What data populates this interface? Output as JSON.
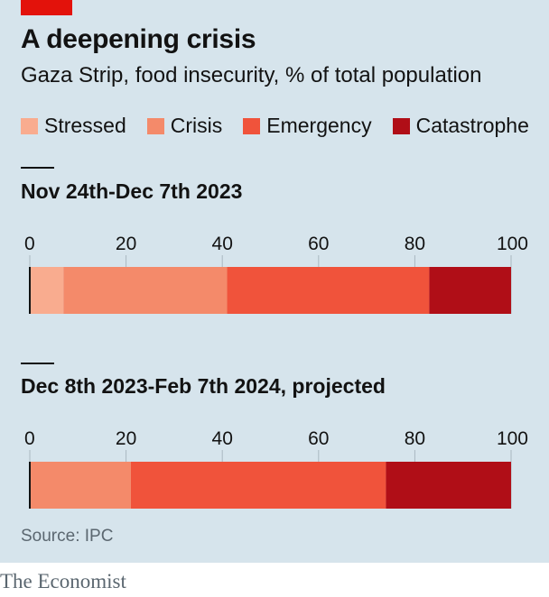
{
  "header": {
    "title": "A deepening crisis",
    "subtitle": "Gaza Strip, food insecurity, % of total population"
  },
  "legend": [
    {
      "label": "Stressed",
      "color": "#f9ac8f"
    },
    {
      "label": "Crisis",
      "color": "#f48a6a"
    },
    {
      "label": "Emergency",
      "color": "#f0533b"
    },
    {
      "label": "Catastrophe",
      "color": "#b00e17"
    }
  ],
  "footer": {
    "source": "Source: IPC",
    "brand": "The Economist"
  },
  "chart_data": [
    {
      "type": "bar",
      "orientation": "horizontal-stacked",
      "title": "Nov 24th-Dec 7th 2023",
      "xlim": [
        0,
        100
      ],
      "ticks": [
        "0",
        "20",
        "40",
        "60",
        "80",
        "100"
      ],
      "tick_values": [
        0,
        20,
        40,
        60,
        80,
        100
      ],
      "grid": true,
      "series": [
        {
          "name": "Stressed",
          "value": 7,
          "color": "#f9ac8f"
        },
        {
          "name": "Crisis",
          "value": 34,
          "color": "#f48a6a"
        },
        {
          "name": "Emergency",
          "value": 42,
          "color": "#f0533b"
        },
        {
          "name": "Catastrophe",
          "value": 17,
          "color": "#b00e17"
        }
      ]
    },
    {
      "type": "bar",
      "orientation": "horizontal-stacked",
      "title": "Dec 8th 2023-Feb 7th 2024, projected",
      "xlim": [
        0,
        100
      ],
      "ticks": [
        "0",
        "20",
        "40",
        "60",
        "80",
        "100"
      ],
      "tick_values": [
        0,
        20,
        40,
        60,
        80,
        100
      ],
      "grid": true,
      "series": [
        {
          "name": "Stressed",
          "value": 0,
          "color": "#f9ac8f"
        },
        {
          "name": "Crisis",
          "value": 21,
          "color": "#f48a6a"
        },
        {
          "name": "Emergency",
          "value": 53,
          "color": "#f0533b"
        },
        {
          "name": "Catastrophe",
          "value": 26,
          "color": "#b00e17"
        }
      ]
    }
  ]
}
